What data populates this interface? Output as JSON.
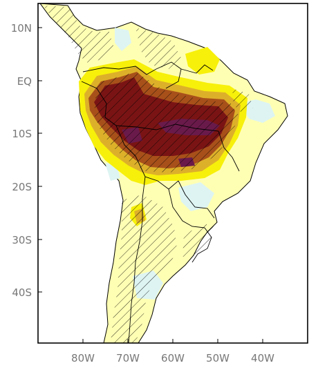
{
  "map": {
    "lat_labels": [
      "10N",
      "EQ",
      "10S",
      "20S",
      "30S",
      "40S"
    ],
    "lon_labels": [
      "80W",
      "70W",
      "60W",
      "50W",
      "40W"
    ],
    "colors": {
      "ocean": "#ffffff",
      "land_base": "#ffffb4",
      "yellow": "#f7f00a",
      "orange": "#ddb02a",
      "brown": "#a8501a",
      "dark_brown": "#7a1414",
      "purple": "#6a1a4a",
      "light_blue": "#ddf4f2",
      "frame": "#000000",
      "border": "#000000",
      "hatch": "#000000"
    }
  }
}
